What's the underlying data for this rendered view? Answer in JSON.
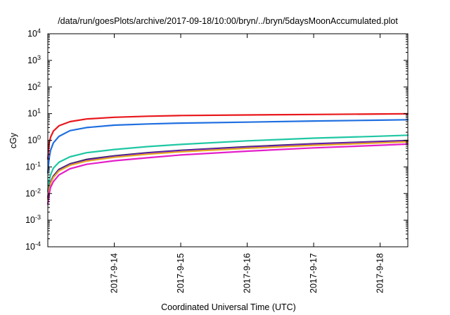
{
  "chart_data": {
    "type": "line",
    "title": "/data/run/goesPlots/archive/2017-09-18/10:00/bryn/../bryn/5daysMoonAccumulated.plot",
    "xlabel": "Coordinated Universal Time (UTC)",
    "ylabel": "cGy",
    "y_scale": "log",
    "ylim": [
      0.0001,
      10000
    ],
    "xlim": [
      "2017-09-13 00:00",
      "2017-09-18 10:00"
    ],
    "grid": false,
    "legend": "none",
    "x_ticks": [
      {
        "t": "2017-09-14 00:00",
        "label": "2017-9-14"
      },
      {
        "t": "2017-09-15 00:00",
        "label": "2017-9-15"
      },
      {
        "t": "2017-09-16 00:00",
        "label": "2017-9-16"
      },
      {
        "t": "2017-09-17 00:00",
        "label": "2017-9-17"
      },
      {
        "t": "2017-09-18 00:00",
        "label": "2017-9-18"
      }
    ],
    "y_ticks": [
      {
        "v": 0.0001,
        "base": "10",
        "exp": "-4"
      },
      {
        "v": 0.001,
        "base": "10",
        "exp": "-3"
      },
      {
        "v": 0.01,
        "base": "10",
        "exp": "-2"
      },
      {
        "v": 0.1,
        "base": "10",
        "exp": "-1"
      },
      {
        "v": 1,
        "base": "10",
        "exp": "0"
      },
      {
        "v": 10,
        "base": "10",
        "exp": "1"
      },
      {
        "v": 100,
        "base": "10",
        "exp": "2"
      },
      {
        "v": 1000,
        "base": "10",
        "exp": "3"
      },
      {
        "v": 10000,
        "base": "10",
        "exp": "4"
      }
    ],
    "series": [
      {
        "color": "#e8171c",
        "x": [
          "2017-09-13 00:00",
          "2017-09-13 00:30",
          "2017-09-13 01:00",
          "2017-09-13 02:00",
          "2017-09-13 04:00",
          "2017-09-13 08:00",
          "2017-09-13 14:00",
          "2017-09-14 00:00",
          "2017-09-14 12:00",
          "2017-09-15 00:00",
          "2017-09-16 00:00",
          "2017-09-17 00:00",
          "2017-09-18 00:00",
          "2017-09-18 10:00"
        ],
        "y": [
          0.2,
          0.8,
          1.3,
          2.2,
          3.5,
          5.0,
          6.3,
          7.3,
          8.0,
          8.5,
          8.9,
          9.3,
          9.7,
          9.9
        ]
      },
      {
        "color": "#1f6fe0",
        "x": [
          "2017-09-13 00:00",
          "2017-09-13 00:30",
          "2017-09-13 01:00",
          "2017-09-13 02:00",
          "2017-09-13 04:00",
          "2017-09-13 08:00",
          "2017-09-13 14:00",
          "2017-09-14 00:00",
          "2017-09-14 12:00",
          "2017-09-15 00:00",
          "2017-09-16 00:00",
          "2017-09-17 00:00",
          "2017-09-18 00:00",
          "2017-09-18 10:00"
        ],
        "y": [
          0.06,
          0.22,
          0.42,
          0.8,
          1.4,
          2.3,
          3.0,
          3.7,
          4.1,
          4.4,
          4.8,
          5.3,
          5.7,
          5.9
        ]
      },
      {
        "color": "#1fc7a3",
        "x": [
          "2017-09-13 00:00",
          "2017-09-13 00:30",
          "2017-09-13 01:00",
          "2017-09-13 02:00",
          "2017-09-13 04:00",
          "2017-09-13 08:00",
          "2017-09-13 14:00",
          "2017-09-14 00:00",
          "2017-09-14 12:00",
          "2017-09-15 00:00",
          "2017-09-16 00:00",
          "2017-09-17 00:00",
          "2017-09-18 00:00",
          "2017-09-18 10:00"
        ],
        "y": [
          0.012,
          0.03,
          0.05,
          0.09,
          0.15,
          0.24,
          0.34,
          0.45,
          0.58,
          0.7,
          0.95,
          1.2,
          1.42,
          1.55
        ]
      },
      {
        "color": "#1a1a1a",
        "x": [
          "2017-09-13 00:00",
          "2017-09-13 00:30",
          "2017-09-13 01:00",
          "2017-09-13 02:00",
          "2017-09-13 04:00",
          "2017-09-13 08:00",
          "2017-09-13 14:00",
          "2017-09-14 00:00",
          "2017-09-14 12:00",
          "2017-09-15 00:00",
          "2017-09-16 00:00",
          "2017-09-17 00:00",
          "2017-09-18 00:00",
          "2017-09-18 10:00"
        ],
        "y": [
          0.007,
          0.017,
          0.027,
          0.045,
          0.08,
          0.13,
          0.19,
          0.26,
          0.34,
          0.42,
          0.57,
          0.74,
          0.9,
          0.98
        ]
      },
      {
        "color": "#6a1fc4",
        "x": [
          "2017-09-13 00:00",
          "2017-09-13 00:30",
          "2017-09-13 01:00",
          "2017-09-13 02:00",
          "2017-09-13 04:00",
          "2017-09-13 08:00",
          "2017-09-13 14:00",
          "2017-09-14 00:00",
          "2017-09-14 12:00",
          "2017-09-15 00:00",
          "2017-09-16 00:00",
          "2017-09-17 00:00",
          "2017-09-18 00:00",
          "2017-09-18 10:00"
        ],
        "y": [
          0.0065,
          0.016,
          0.026,
          0.043,
          0.077,
          0.125,
          0.18,
          0.25,
          0.33,
          0.41,
          0.55,
          0.72,
          0.88,
          0.96
        ]
      },
      {
        "color": "#e6a822",
        "x": [
          "2017-09-13 00:00",
          "2017-09-13 00:30",
          "2017-09-13 01:00",
          "2017-09-13 02:00",
          "2017-09-13 04:00",
          "2017-09-13 08:00",
          "2017-09-13 14:00",
          "2017-09-14 00:00",
          "2017-09-14 12:00",
          "2017-09-15 00:00",
          "2017-09-16 00:00",
          "2017-09-17 00:00",
          "2017-09-18 00:00",
          "2017-09-18 10:00"
        ],
        "y": [
          0.006,
          0.015,
          0.024,
          0.04,
          0.07,
          0.115,
          0.165,
          0.23,
          0.3,
          0.37,
          0.5,
          0.65,
          0.8,
          0.88
        ]
      },
      {
        "color": "#e31fc9",
        "x": [
          "2017-09-13 00:00",
          "2017-09-13 00:30",
          "2017-09-13 01:00",
          "2017-09-13 02:00",
          "2017-09-13 04:00",
          "2017-09-13 08:00",
          "2017-09-13 14:00",
          "2017-09-14 00:00",
          "2017-09-14 12:00",
          "2017-09-15 00:00",
          "2017-09-16 00:00",
          "2017-09-17 00:00",
          "2017-09-18 00:00",
          "2017-09-18 10:00"
        ],
        "y": [
          0.004,
          0.01,
          0.017,
          0.028,
          0.05,
          0.085,
          0.125,
          0.17,
          0.22,
          0.28,
          0.39,
          0.52,
          0.65,
          0.72
        ]
      }
    ]
  }
}
